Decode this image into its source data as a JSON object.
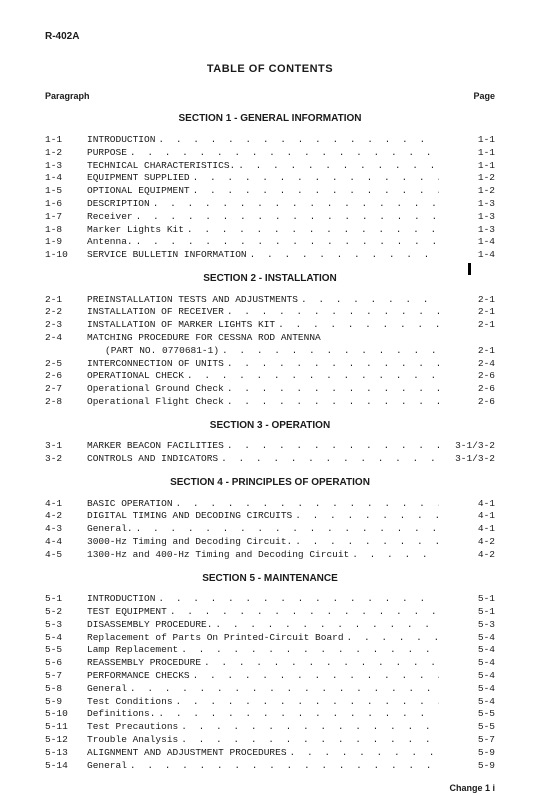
{
  "doc_id": "R-402A",
  "title": "TABLE OF CONTENTS",
  "col_left": "Paragraph",
  "col_right": "Page",
  "footer": "Change 1  i",
  "sections": [
    {
      "title": "SECTION 1 - GENERAL INFORMATION",
      "rows": [
        {
          "n": "1-1",
          "t": "INTRODUCTION",
          "p": "1-1"
        },
        {
          "n": "1-2",
          "t": "PURPOSE",
          "p": "1-1"
        },
        {
          "n": "1-3",
          "t": "TECHNICAL CHARACTERISTICS.",
          "p": "1-1"
        },
        {
          "n": "1-4",
          "t": "EQUIPMENT SUPPLIED",
          "p": "1-2"
        },
        {
          "n": "1-5",
          "t": "OPTIONAL EQUIPMENT",
          "p": "1-2"
        },
        {
          "n": "1-6",
          "t": "DESCRIPTION",
          "p": "1-3"
        },
        {
          "n": "1-7",
          "t": "Receiver",
          "p": "1-3"
        },
        {
          "n": "1-8",
          "t": "Marker Lights Kit",
          "p": "1-3"
        },
        {
          "n": "1-9",
          "t": "Antenna.",
          "p": "1-4"
        },
        {
          "n": "1-10",
          "t": "SERVICE BULLETIN INFORMATION",
          "p": "1-4"
        }
      ]
    },
    {
      "title": "SECTION 2 - INSTALLATION",
      "rows": [
        {
          "n": "2-1",
          "t": "PREINSTALLATION TESTS AND ADJUSTMENTS",
          "p": "2-1"
        },
        {
          "n": "2-2",
          "t": "INSTALLATION OF RECEIVER",
          "p": "2-1"
        },
        {
          "n": "2-3",
          "t": "INSTALLATION OF MARKER LIGHTS KIT",
          "p": "2-1"
        },
        {
          "n": "2-4",
          "t": "MATCHING PROCEDURE FOR CESSNA ROD ANTENNA",
          "cont": "(PART NO. 0770681-1)",
          "p": "2-1"
        },
        {
          "n": "2-5",
          "t": "INTERCONNECTION OF UNITS",
          "p": "2-4"
        },
        {
          "n": "2-6",
          "t": "OPERATIONAL CHECK",
          "p": "2-6"
        },
        {
          "n": "2-7",
          "t": "Operational Ground Check",
          "p": "2-6"
        },
        {
          "n": "2-8",
          "t": "Operational Flight Check",
          "p": "2-6"
        }
      ]
    },
    {
      "title": "SECTION 3 - OPERATION",
      "rows": [
        {
          "n": "3-1",
          "t": "MARKER BEACON FACILITIES",
          "p": "3-1/3-2"
        },
        {
          "n": "3-2",
          "t": "CONTROLS AND INDICATORS",
          "p": "3-1/3-2"
        }
      ]
    },
    {
      "title": "SECTION 4 - PRINCIPLES OF OPERATION",
      "rows": [
        {
          "n": "4-1",
          "t": "BASIC OPERATION",
          "p": "4-1"
        },
        {
          "n": "4-2",
          "t": "DIGITAL TIMING AND DECODING CIRCUITS",
          "p": "4-1"
        },
        {
          "n": "4-3",
          "t": "General.",
          "p": "4-1"
        },
        {
          "n": "4-4",
          "t": "3000-Hz Timing and Decoding Circuit.",
          "p": "4-2"
        },
        {
          "n": "4-5",
          "t": "1300-Hz and 400-Hz Timing and Decoding Circuit",
          "p": "4-2"
        }
      ]
    },
    {
      "title": "SECTION 5 - MAINTENANCE",
      "rows": [
        {
          "n": "5-1",
          "t": "INTRODUCTION",
          "p": "5-1"
        },
        {
          "n": "5-2",
          "t": "TEST EQUIPMENT",
          "p": "5-1"
        },
        {
          "n": "5-3",
          "t": "DISASSEMBLY PROCEDURE.",
          "p": "5-3"
        },
        {
          "n": "5-4",
          "t": "Replacement of Parts On Printed-Circuit Board",
          "p": "5-4"
        },
        {
          "n": "5-5",
          "t": "Lamp Replacement",
          "p": "5-4"
        },
        {
          "n": "5-6",
          "t": "REASSEMBLY PROCEDURE",
          "p": "5-4"
        },
        {
          "n": "5-7",
          "t": "PERFORMANCE CHECKS",
          "p": "5-4"
        },
        {
          "n": "5-8",
          "t": "General",
          "p": "5-4"
        },
        {
          "n": "5-9",
          "t": "Test Conditions",
          "p": "5-4"
        },
        {
          "n": "5-10",
          "t": "Definitions.",
          "p": "5-5"
        },
        {
          "n": "5-11",
          "t": "Test Precautions",
          "p": "5-5"
        },
        {
          "n": "5-12",
          "t": "Trouble Analysis",
          "p": "5-7"
        },
        {
          "n": "5-13",
          "t": "ALIGNMENT AND ADJUSTMENT PROCEDURES",
          "p": "5-9"
        },
        {
          "n": "5-14",
          "t": "General",
          "p": "5-9"
        }
      ]
    }
  ]
}
